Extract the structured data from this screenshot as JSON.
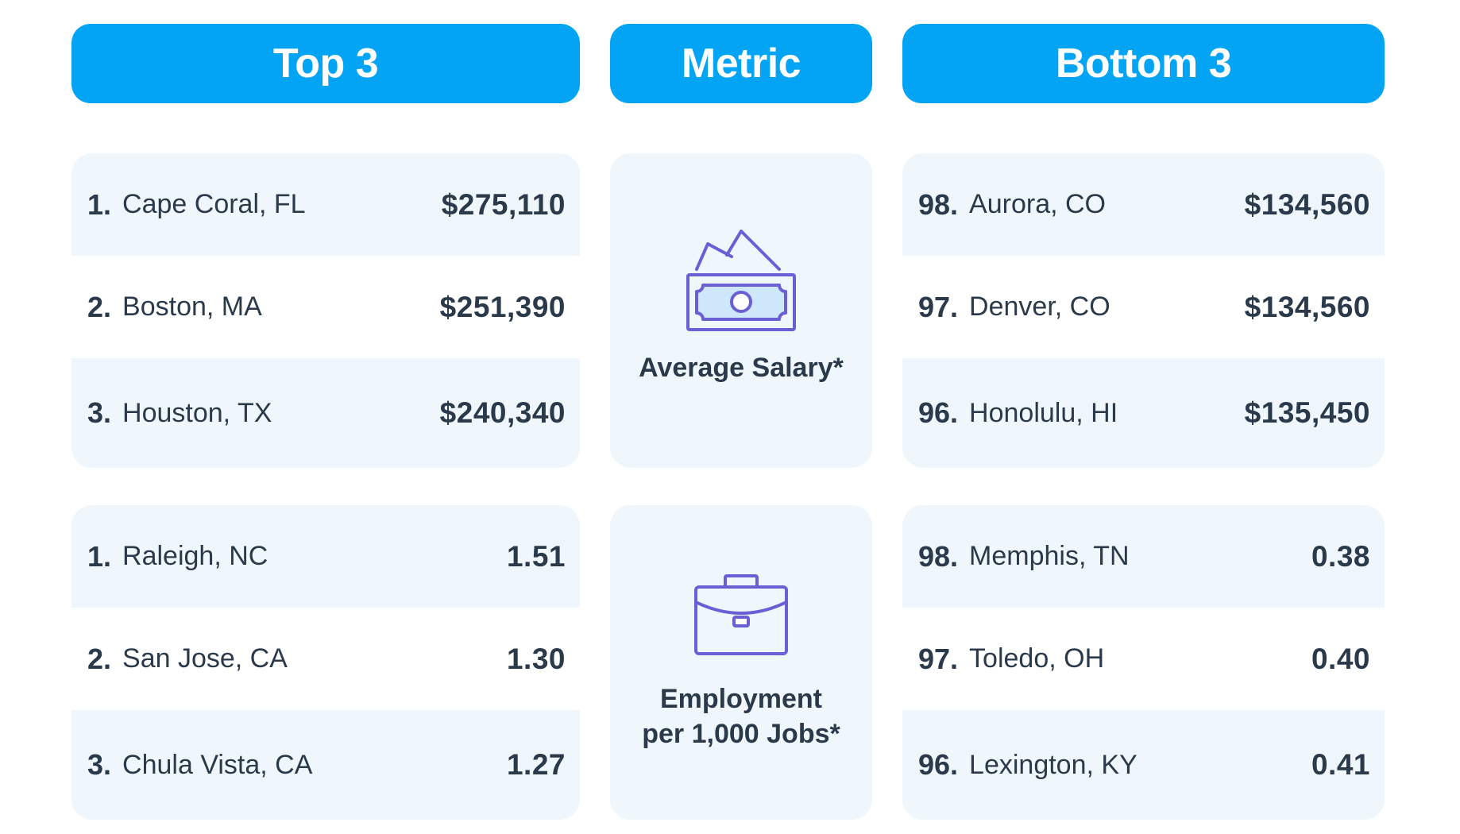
{
  "headers": {
    "top": "Top 3",
    "metric": "Metric",
    "bottom": "Bottom 3"
  },
  "salary": {
    "metric_label": "Average Salary*",
    "icon": "money-bills-icon",
    "top": [
      {
        "rank": "1.",
        "city": "Cape Coral, FL",
        "value": "$275,110"
      },
      {
        "rank": "2.",
        "city": "Boston, MA",
        "value": "$251,390"
      },
      {
        "rank": "3.",
        "city": "Houston, TX",
        "value": "$240,340"
      }
    ],
    "bottom": [
      {
        "rank": "98.",
        "city": "Aurora, CO",
        "value": "$134,560"
      },
      {
        "rank": "97.",
        "city": "Denver, CO",
        "value": "$134,560"
      },
      {
        "rank": "96.",
        "city": "Honolulu, HI",
        "value": "$135,450"
      }
    ]
  },
  "employment": {
    "metric_label_line1": "Employment",
    "metric_label_line2": "per 1,000 Jobs*",
    "icon": "briefcase-icon",
    "top": [
      {
        "rank": "1.",
        "city": "Raleigh, NC",
        "value": "1.51"
      },
      {
        "rank": "2.",
        "city": "San Jose, CA",
        "value": "1.30"
      },
      {
        "rank": "3.",
        "city": "Chula Vista, CA",
        "value": "1.27"
      }
    ],
    "bottom": [
      {
        "rank": "98.",
        "city": "Memphis, TN",
        "value": "0.38"
      },
      {
        "rank": "97.",
        "city": "Toledo, OH",
        "value": "0.40"
      },
      {
        "rank": "96.",
        "city": "Lexington, KY",
        "value": "0.41"
      }
    ]
  },
  "colors": {
    "header_bg": "#03a4f4",
    "row_shade": "#eff7fc",
    "icon_stroke": "#6b5fd6",
    "icon_fill": "#cfe7fb"
  }
}
